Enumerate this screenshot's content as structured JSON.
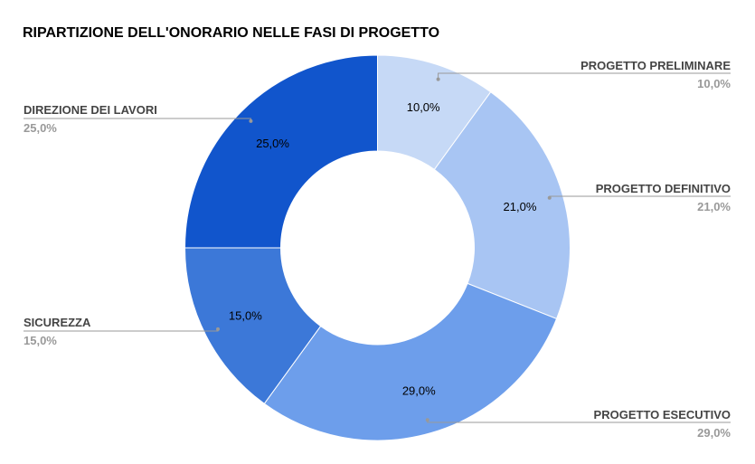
{
  "chart_data": {
    "type": "pie",
    "title": "RIPARTIZIONE DELL'ONORARIO NELLE FASI DI PROGETTO",
    "donut": true,
    "legend": "callouts",
    "slices": [
      {
        "label": "PROGETTO PRELIMINARE",
        "value": 10.0,
        "value_label": "10,0%",
        "color": "#c6d9f6"
      },
      {
        "label": "PROGETTO DEFINITIVO",
        "value": 21.0,
        "value_label": "21,0%",
        "color": "#a8c5f3"
      },
      {
        "label": "PROGETTO ESECUTIVO",
        "value": 29.0,
        "value_label": "29,0%",
        "color": "#6d9eeb"
      },
      {
        "label": "SICUREZZA",
        "value": 15.0,
        "value_label": "15,0%",
        "color": "#3c78d8"
      },
      {
        "label": "DIREZIONE DEI LAVORI",
        "value": 25.0,
        "value_label": "25,0%",
        "color": "#1155cc"
      }
    ]
  }
}
